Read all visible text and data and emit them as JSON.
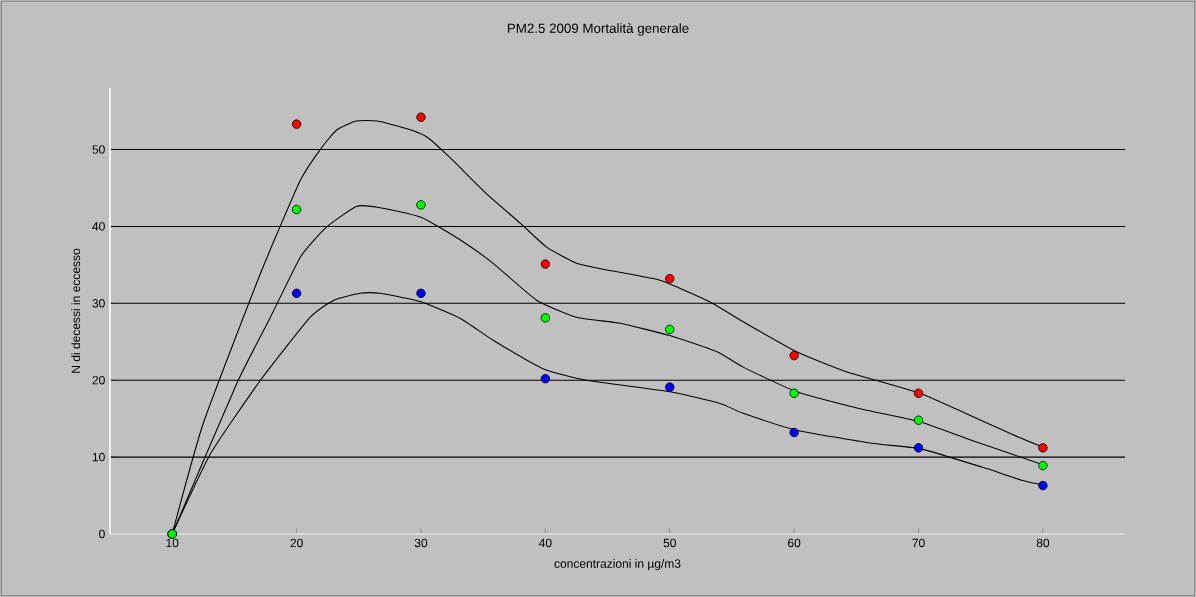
{
  "chart_data": {
    "type": "scatter",
    "title": "PM2.5  2009  Mortalità generale",
    "xlabel": "concentrazioni in µg/m3",
    "ylabel": "N di decessi in eccesso",
    "xlim": [
      5,
      86.6
    ],
    "ylim": [
      0,
      58
    ],
    "xticks": [
      10,
      20,
      30,
      40,
      50,
      60,
      70,
      80
    ],
    "yticks": [
      0,
      10,
      20,
      30,
      40,
      50
    ],
    "grid": "y",
    "series": [
      {
        "type": "line",
        "color": "#000000",
        "marker": "none",
        "line_style": "solid",
        "x": [
          10,
          12.5,
          17.1,
          20.3,
          21.9,
          23.2,
          24.8,
          26.5,
          28.9,
          30.5,
          32.3,
          35.3,
          38.0,
          40.1,
          42.5,
          44.4,
          49.2,
          53.2,
          55.9,
          60.2,
          64.2,
          70.1,
          75.0,
          77.6,
          80
        ],
        "values": [
          0,
          14.4,
          33.9,
          46,
          50,
          52.5,
          53.7,
          53.7,
          52.7,
          51.6,
          49,
          44.2,
          40.4,
          37.3,
          35.2,
          34.5,
          33.0,
          30.2,
          27.6,
          23.7,
          21.1,
          18.3,
          14.8,
          12.9,
          11.3
        ]
      },
      {
        "type": "line",
        "color": "#000000",
        "marker": "none",
        "line_style": "solid",
        "x": [
          10,
          15.2,
          17.9,
          20.3,
          22.4,
          24.8,
          26.5,
          30.0,
          33.2,
          35.8,
          39.3,
          42.5,
          46.0,
          50.0,
          53.8,
          55.9,
          60.2,
          65.3,
          70.1,
          73.9,
          80
        ],
        "values": [
          0,
          19.6,
          28.2,
          36.0,
          39.9,
          42.6,
          42.5,
          41.2,
          38.2,
          35.2,
          30.4,
          28.2,
          27.4,
          25.8,
          23.7,
          21.7,
          18.5,
          16.3,
          14.6,
          12.4,
          9.0
        ]
      },
      {
        "type": "line",
        "color": "#000000",
        "marker": "none",
        "line_style": "solid",
        "x": [
          10,
          13.1,
          17.1,
          21.1,
          23.0,
          25.1,
          26.7,
          30.0,
          33.2,
          35.8,
          39.8,
          43.3,
          50.0,
          54.0,
          55.9,
          60.2,
          66.2,
          70.1,
          75.1,
          78.3,
          80
        ],
        "values": [
          0,
          10.5,
          20.0,
          28.2,
          30.4,
          31.3,
          31.3,
          30.2,
          28.0,
          25.2,
          21.5,
          20.0,
          18.5,
          17.0,
          15.7,
          13.5,
          11.8,
          11.1,
          8.7,
          7.0,
          6.4
        ]
      },
      {
        "color": "#ff0000",
        "marker": "circle",
        "x": [
          10,
          20,
          30,
          40,
          50,
          60,
          70,
          80
        ],
        "values": [
          0,
          53.3,
          54.2,
          35.1,
          33.2,
          23.2,
          18.3,
          11.2
        ]
      },
      {
        "color": "#0000ff",
        "marker": "circle",
        "x": [
          10,
          20,
          30,
          40,
          50,
          60,
          70,
          80
        ],
        "values": [
          0,
          31.3,
          31.3,
          20.2,
          19.1,
          13.2,
          11.2,
          6.3
        ]
      },
      {
        "color": "#00ff00",
        "marker": "circle",
        "x": [
          10,
          20,
          30,
          40,
          50,
          60,
          70,
          80
        ],
        "values": [
          0,
          42.2,
          42.8,
          28.1,
          26.6,
          18.3,
          14.8,
          8.9
        ]
      }
    ]
  }
}
